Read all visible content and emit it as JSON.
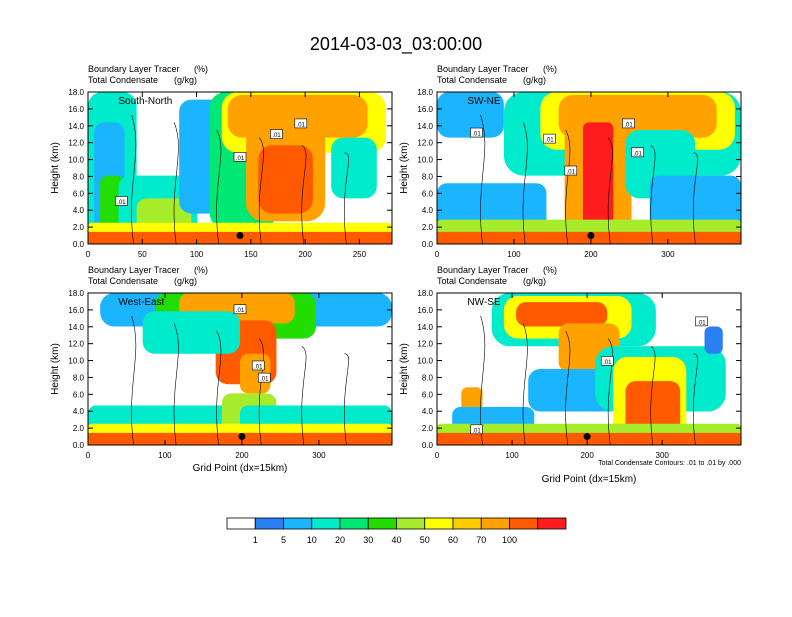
{
  "title": "2014-03-03_03:00:00",
  "subtitle_left_1": "Boundary Layer Tracer",
  "subtitle_right_1": "(%)",
  "subtitle_left_2": "Total Condensate",
  "subtitle_right_2": "(g/kg)",
  "ylabel": "Height (km)",
  "xlabel": "Grid Point (dx=15km)",
  "contour_note": "Total Condensate Contours: .01 to .01 by .000",
  "contour_label": ".01",
  "colorbar": {
    "labels": [
      "1",
      "5",
      "10",
      "20",
      "30",
      "40",
      "50",
      "60",
      "70",
      "100"
    ],
    "colors": [
      "#ffffff",
      "#2a7ff2",
      "#1ab4ff",
      "#00eacc",
      "#00e873",
      "#22dd00",
      "#a6ec2b",
      "#ffff00",
      "#ffcc00",
      "#ffa200",
      "#ff5a00",
      "#ff1c1c"
    ]
  },
  "chart_data": [
    {
      "type": "heatmap",
      "panel": "South-North",
      "label": "South-North",
      "xlim": [
        0,
        280
      ],
      "xticks": [
        0,
        50,
        100,
        150,
        200,
        250
      ],
      "xtick_labels": [
        "0",
        "50",
        "100",
        "150",
        "200",
        "250"
      ],
      "ylim": [
        0,
        18
      ],
      "yticks": [
        0,
        2,
        4,
        6,
        8,
        10,
        12,
        14,
        16,
        18
      ],
      "ytick_labels": [
        "0.0",
        "2.0",
        "4.0",
        "6.0",
        "8.0",
        "10.0",
        "12.0",
        "14.0",
        "16.0",
        "18.0"
      ],
      "marker": [
        140,
        1.0
      ]
    },
    {
      "type": "heatmap",
      "panel": "SW-NE",
      "label": "SW-NE",
      "xlim": [
        0,
        395
      ],
      "xticks": [
        0,
        100,
        200,
        300
      ],
      "xtick_labels": [
        "0",
        "100",
        "200",
        "300"
      ],
      "ylim": [
        0,
        18
      ],
      "yticks": [
        0,
        2,
        4,
        6,
        8,
        10,
        12,
        14,
        16,
        18
      ],
      "ytick_labels": [
        "0.0",
        "2.0",
        "4.0",
        "6.0",
        "8.0",
        "10.0",
        "12.0",
        "14.0",
        "16.0",
        "18.0"
      ],
      "marker": [
        200,
        1.0
      ]
    },
    {
      "type": "heatmap",
      "panel": "West-East",
      "label": "West-East",
      "xlim": [
        0,
        395
      ],
      "xticks": [
        0,
        100,
        200,
        300
      ],
      "xtick_labels": [
        "0",
        "100",
        "200",
        "300"
      ],
      "ylim": [
        0,
        18
      ],
      "yticks": [
        0,
        2,
        4,
        6,
        8,
        10,
        12,
        14,
        16,
        18
      ],
      "ytick_labels": [
        "0.0",
        "2.0",
        "4.0",
        "6.0",
        "8.0",
        "10.0",
        "12.0",
        "14.0",
        "16.0",
        "18.0"
      ],
      "marker": [
        200,
        1.0
      ]
    },
    {
      "type": "heatmap",
      "panel": "NW-SE",
      "label": "NW-SE",
      "xlim": [
        0,
        405
      ],
      "xticks": [
        0,
        100,
        200,
        300
      ],
      "xtick_labels": [
        "0",
        "100",
        "200",
        "300"
      ],
      "ylim": [
        0,
        18
      ],
      "yticks": [
        0,
        2,
        4,
        6,
        8,
        10,
        12,
        14,
        16,
        18
      ],
      "ytick_labels": [
        "0.0",
        "2.0",
        "4.0",
        "6.0",
        "8.0",
        "10.0",
        "12.0",
        "14.0",
        "16.0",
        "18.0"
      ],
      "marker": [
        200,
        1.0
      ]
    }
  ]
}
